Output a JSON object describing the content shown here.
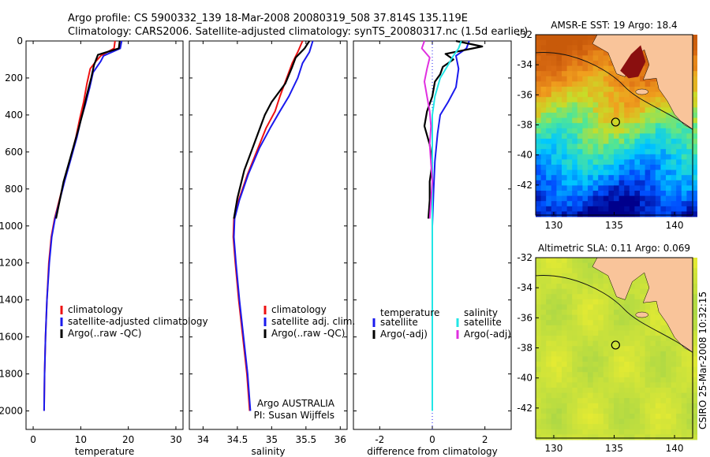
{
  "header": {
    "line1": "Argo profile: CS 5900332_139 18-Mar-2008 20080319_508 37.814S 135.119E",
    "line2": "Climatology: CARS2006. Satellite-adjusted climatology: synTS_20080317.nc (1.5d earlier)"
  },
  "colors": {
    "red": "#ee1111",
    "blue": "#1a1aee",
    "black": "#000000",
    "cyan": "#22e6e6",
    "magenta": "#e030e0",
    "land": "#f9c49a",
    "land_dark": "#8a0f0f"
  },
  "chart_data": [
    {
      "type": "line",
      "id": "temperature",
      "xlabel": "temperature",
      "xlim": [
        -1.5,
        31.5
      ],
      "ylim": [
        0,
        2100
      ],
      "y_reversed": true,
      "xticks": [
        0,
        10,
        20,
        30
      ],
      "yticks": [
        0,
        200,
        400,
        600,
        800,
        1000,
        1200,
        1400,
        1600,
        1800,
        2000
      ],
      "legend": {
        "position": "lower-left",
        "entries": [
          "climatology",
          "satellite-adjusted climatology",
          "Argo(..raw -QC)"
        ]
      },
      "series": [
        {
          "name": "climatology",
          "color": "red",
          "points": [
            [
              17.2,
              0
            ],
            [
              17.0,
              40
            ],
            [
              14.2,
              80
            ],
            [
              13.2,
              110
            ],
            [
              12.0,
              150
            ],
            [
              11.3,
              230
            ],
            [
              10.6,
              330
            ],
            [
              9.8,
              420
            ],
            [
              9.0,
              520
            ],
            [
              7.8,
              640
            ],
            [
              6.5,
              760
            ],
            [
              5.5,
              860
            ],
            [
              4.5,
              960
            ],
            [
              3.8,
              1060
            ],
            [
              3.3,
              1200
            ],
            [
              2.9,
              1400
            ],
            [
              2.6,
              1600
            ],
            [
              2.4,
              1800
            ],
            [
              2.3,
              2000
            ]
          ]
        },
        {
          "name": "satellite-adjusted climatology",
          "color": "blue",
          "points": [
            [
              18.6,
              0
            ],
            [
              18.3,
              40
            ],
            [
              14.8,
              80
            ],
            [
              14.2,
              110
            ],
            [
              12.6,
              170
            ],
            [
              11.9,
              250
            ],
            [
              11.0,
              340
            ],
            [
              10.0,
              430
            ],
            [
              9.2,
              520
            ],
            [
              7.9,
              640
            ],
            [
              6.6,
              760
            ],
            [
              5.6,
              860
            ],
            [
              4.6,
              960
            ],
            [
              3.9,
              1060
            ],
            [
              3.4,
              1200
            ],
            [
              2.9,
              1400
            ],
            [
              2.6,
              1600
            ],
            [
              2.4,
              1800
            ],
            [
              2.3,
              2000
            ]
          ]
        },
        {
          "name": "Argo(..raw -QC)",
          "color": "black",
          "points": [
            [
              18.2,
              0
            ],
            [
              18.0,
              40
            ],
            [
              13.6,
              75
            ],
            [
              12.8,
              130
            ],
            [
              12.2,
              200
            ],
            [
              11.3,
              290
            ],
            [
              10.5,
              380
            ],
            [
              9.6,
              470
            ],
            [
              8.6,
              560
            ],
            [
              7.5,
              660
            ],
            [
              6.4,
              760
            ],
            [
              5.6,
              860
            ],
            [
              4.8,
              960
            ]
          ]
        }
      ]
    },
    {
      "type": "line",
      "id": "salinity",
      "xlabel": "salinity",
      "xlim": [
        33.8,
        36.1
      ],
      "ylim": [
        0,
        2100
      ],
      "y_reversed": true,
      "xticks": [
        34,
        34.5,
        35,
        35.5,
        36
      ],
      "legend": {
        "position": "lower-left",
        "entries": [
          "climatology",
          "satellite adj. clim.",
          "Argo(..raw -QC)"
        ]
      },
      "annotation": [
        "Argo AUSTRALIA",
        "PI: Susan Wijffels"
      ],
      "series": [
        {
          "name": "climatology",
          "color": "red",
          "points": [
            [
              35.45,
              0
            ],
            [
              35.38,
              60
            ],
            [
              35.3,
              120
            ],
            [
              35.22,
              200
            ],
            [
              35.12,
              300
            ],
            [
              35.05,
              380
            ],
            [
              34.92,
              470
            ],
            [
              34.8,
              580
            ],
            [
              34.65,
              720
            ],
            [
              34.52,
              860
            ],
            [
              34.45,
              960
            ],
            [
              34.44,
              1060
            ],
            [
              34.47,
              1200
            ],
            [
              34.52,
              1400
            ],
            [
              34.58,
              1600
            ],
            [
              34.64,
              1800
            ],
            [
              34.68,
              2000
            ]
          ]
        },
        {
          "name": "satellite adj. clim.",
          "color": "blue",
          "points": [
            [
              35.6,
              0
            ],
            [
              35.55,
              60
            ],
            [
              35.45,
              120
            ],
            [
              35.38,
              200
            ],
            [
              35.25,
              300
            ],
            [
              35.12,
              380
            ],
            [
              34.98,
              470
            ],
            [
              34.82,
              580
            ],
            [
              34.66,
              720
            ],
            [
              34.53,
              860
            ],
            [
              34.46,
              960
            ],
            [
              34.45,
              1060
            ],
            [
              34.48,
              1200
            ],
            [
              34.53,
              1400
            ],
            [
              34.59,
              1600
            ],
            [
              34.65,
              1800
            ],
            [
              34.69,
              2000
            ]
          ]
        },
        {
          "name": "Argo(..raw -QC)",
          "color": "black",
          "points": [
            [
              35.55,
              0
            ],
            [
              35.48,
              40
            ],
            [
              35.35,
              90
            ],
            [
              35.3,
              140
            ],
            [
              35.2,
              230
            ],
            [
              35.0,
              330
            ],
            [
              34.9,
              400
            ],
            [
              34.8,
              500
            ],
            [
              34.7,
              600
            ],
            [
              34.6,
              700
            ],
            [
              34.5,
              850
            ],
            [
              34.45,
              960
            ]
          ]
        }
      ]
    },
    {
      "type": "line",
      "id": "difference",
      "xlabel": "difference from climatology",
      "xlim": [
        -3,
        3
      ],
      "ylim": [
        0,
        2100
      ],
      "y_reversed": true,
      "xticks": [
        -2,
        0,
        2
      ],
      "legend": {
        "position": "lower-left",
        "columns": [
          {
            "heading": "temperature",
            "entries": [
              "satellite",
              "Argo(-adj)"
            ]
          },
          {
            "heading": "salinity",
            "entries": [
              "satellite",
              "Argo(-adj)"
            ]
          }
        ]
      },
      "series": [
        {
          "name": "temperature satellite",
          "color": "blue",
          "points": [
            [
              1.4,
              0
            ],
            [
              1.3,
              40
            ],
            [
              0.9,
              80
            ],
            [
              1.0,
              150
            ],
            [
              0.9,
              250
            ],
            [
              0.6,
              330
            ],
            [
              0.3,
              400
            ],
            [
              0.2,
              500
            ],
            [
              0.1,
              650
            ],
            [
              0.05,
              800
            ],
            [
              0.0,
              1000
            ],
            [
              0.0,
              1400
            ],
            [
              0.0,
              2000
            ]
          ]
        },
        {
          "name": "temperature Argo(-adj)",
          "color": "black",
          "points": [
            [
              0.9,
              0
            ],
            [
              1.9,
              30
            ],
            [
              0.5,
              70
            ],
            [
              0.8,
              100
            ],
            [
              0.4,
              140
            ],
            [
              0.3,
              180
            ],
            [
              0.1,
              220
            ],
            [
              0.0,
              300
            ],
            [
              -0.2,
              380
            ],
            [
              -0.3,
              460
            ],
            [
              -0.1,
              560
            ],
            [
              0.0,
              660
            ],
            [
              -0.1,
              760
            ],
            [
              -0.1,
              860
            ],
            [
              -0.15,
              960
            ]
          ]
        },
        {
          "name": "salinity satellite",
          "color": "cyan",
          "points": [
            [
              1.1,
              0
            ],
            [
              1.0,
              40
            ],
            [
              0.8,
              80
            ],
            [
              0.6,
              130
            ],
            [
              0.3,
              200
            ],
            [
              0.1,
              300
            ],
            [
              0.0,
              400
            ],
            [
              0.0,
              700
            ],
            [
              0.0,
              1000
            ],
            [
              0.0,
              1500
            ],
            [
              0.0,
              2000
            ]
          ]
        },
        {
          "name": "salinity Argo(-adj)",
          "color": "magenta",
          "points": [
            [
              -0.3,
              0
            ],
            [
              -0.4,
              40
            ],
            [
              -0.1,
              90
            ],
            [
              -0.2,
              150
            ],
            [
              -0.3,
              220
            ],
            [
              -0.2,
              300
            ],
            [
              -0.1,
              380
            ],
            [
              -0.05,
              460
            ],
            [
              -0.1,
              560
            ],
            [
              -0.05,
              660
            ],
            [
              0.0,
              760
            ],
            [
              -0.05,
              860
            ],
            [
              -0.1,
              960
            ]
          ]
        }
      ]
    },
    {
      "type": "heatmap",
      "id": "sst-map",
      "title": "AMSR-E SST: 19 Argo: 18.4",
      "xlim": [
        128.5,
        141.5
      ],
      "ylim": [
        -44,
        -32
      ],
      "xticks": [
        130,
        135,
        140
      ],
      "yticks": [
        -32,
        -34,
        -36,
        -38,
        -40,
        -42
      ],
      "argo_location": [
        135.119,
        -37.814
      ]
    },
    {
      "type": "heatmap",
      "id": "sla-map",
      "title": "Altimetric SLA: 0.11 Argo: 0.069",
      "xlim": [
        128.5,
        141.5
      ],
      "ylim": [
        -44,
        -32
      ],
      "xticks": [
        130,
        135,
        140
      ],
      "yticks": [
        -32,
        -34,
        -36,
        -38,
        -40,
        -42
      ],
      "argo_location": [
        135.119,
        -37.814
      ]
    }
  ],
  "footer": {
    "stamp": "CSIRO 25-Mar-2008 10:32:15"
  }
}
